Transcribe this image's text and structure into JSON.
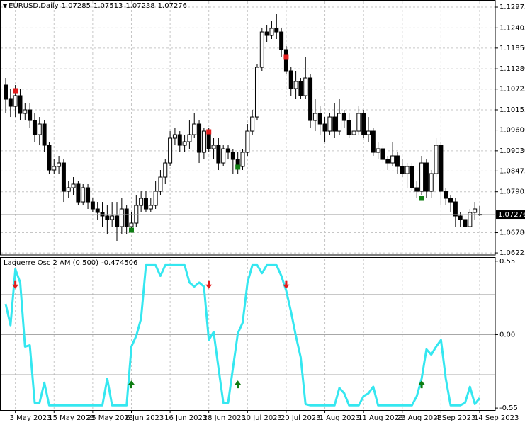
{
  "chart_data": [
    {
      "type": "candlestick",
      "title": "EURUSD,Daily",
      "open": [
        1.10836,
        1.10447,
        1.10252,
        1.10544,
        1.10058,
        1.10155,
        1.09863,
        1.09474,
        1.09766,
        1.09182,
        1.08502,
        1.08599,
        1.08696,
        1.07918,
        1.08015,
        1.08113,
        1.07626,
        1.08015,
        1.07626,
        1.07432,
        1.07335,
        1.07238,
        1.07141,
        1.07238,
        1.06946,
        1.07432,
        1.06946,
        1.07043,
        1.07529,
        1.07724,
        1.07432,
        1.07529,
        1.07918,
        1.08307,
        1.08696,
        1.09377,
        1.09474,
        1.09182,
        1.0928,
        1.09474,
        1.09766,
        1.08988,
        1.09571,
        1.09085,
        1.09182,
        1.08696,
        1.09085,
        1.08988,
        1.08793,
        1.08599,
        1.08988,
        1.09571,
        1.0996,
        1.11322,
        1.12294,
        1.12197,
        1.12392,
        1.12294,
        1.11808,
        1.11225,
        1.10738,
        1.10933,
        1.10544,
        1.1103,
        1.09863,
        1.10058,
        1.09766,
        1.09571,
        1.0996,
        1.09571,
        1.10058,
        1.09863,
        1.09474,
        1.09571,
        1.10058,
        1.09474,
        1.09571,
        1.08988,
        1.09085,
        1.08793,
        1.08696,
        1.08891,
        1.08599,
        1.08404,
        1.08599,
        1.08015,
        1.07918,
        1.08696,
        1.07918,
        1.08404,
        1.09182,
        1.07918,
        1.07724,
        1.07626,
        1.07238,
        1.07141,
        1.06946,
        1.07335,
        1.07285
      ],
      "high": [
        1.1103,
        1.10738,
        1.10836,
        1.10738,
        1.10349,
        1.10349,
        1.10058,
        1.0996,
        1.09863,
        1.0928,
        1.08793,
        1.08891,
        1.08793,
        1.0821,
        1.08307,
        1.0821,
        1.08113,
        1.08113,
        1.07724,
        1.07626,
        1.07626,
        1.07529,
        1.07626,
        1.07626,
        1.07724,
        1.07529,
        1.07335,
        1.07821,
        1.07918,
        1.07918,
        1.07724,
        1.0821,
        1.08502,
        1.08793,
        1.09571,
        1.09669,
        1.09571,
        1.09474,
        1.09863,
        1.10058,
        1.09863,
        1.09669,
        1.09669,
        1.09377,
        1.09377,
        1.09182,
        1.09182,
        1.09085,
        1.08988,
        1.09085,
        1.09766,
        1.10155,
        1.11419,
        1.12392,
        1.12489,
        1.12586,
        1.12781,
        1.12392,
        1.11905,
        1.11322,
        1.11225,
        1.1103,
        1.11614,
        1.11127,
        1.10447,
        1.10252,
        1.0996,
        1.10058,
        1.10349,
        1.10447,
        1.10155,
        1.10058,
        1.09863,
        1.10252,
        1.10155,
        1.0996,
        1.09669,
        1.0928,
        1.09182,
        1.08891,
        1.0928,
        1.08988,
        1.08793,
        1.08696,
        1.08696,
        1.0821,
        1.08891,
        1.08793,
        1.08502,
        1.09377,
        1.0928,
        1.08015,
        1.07821,
        1.07724,
        1.07335,
        1.07238,
        1.07432,
        1.07626,
        1.07513
      ],
      "low": [
        1.10058,
        1.0996,
        1.0996,
        1.09863,
        1.09863,
        1.09669,
        1.0928,
        1.09182,
        1.08988,
        1.08404,
        1.08404,
        1.08404,
        1.07626,
        1.07724,
        1.07821,
        1.07529,
        1.07529,
        1.07432,
        1.07335,
        1.07141,
        1.06946,
        1.06752,
        1.06946,
        1.06557,
        1.06752,
        1.06752,
        1.06849,
        1.06946,
        1.07335,
        1.07335,
        1.07335,
        1.07432,
        1.07821,
        1.08113,
        1.08599,
        1.09182,
        1.08988,
        1.08988,
        1.09085,
        1.09377,
        1.08696,
        1.08793,
        1.08988,
        1.08793,
        1.08502,
        1.08599,
        1.08793,
        1.08404,
        1.08404,
        1.08502,
        1.08891,
        1.09474,
        1.09863,
        1.11225,
        1.12003,
        1.121,
        1.121,
        1.11614,
        1.11127,
        1.10544,
        1.10447,
        1.10447,
        1.10447,
        1.09669,
        1.09571,
        1.09474,
        1.0928,
        1.09474,
        1.09377,
        1.09474,
        1.09669,
        1.09377,
        1.0928,
        1.09474,
        1.09377,
        1.0928,
        1.08891,
        1.08793,
        1.08696,
        1.08502,
        1.08599,
        1.08404,
        1.08307,
        1.08015,
        1.07918,
        1.07724,
        1.07821,
        1.07724,
        1.07724,
        1.08307,
        1.07529,
        1.07529,
        1.07335,
        1.06946,
        1.06946,
        1.06849,
        1.06946,
        1.07141,
        1.07238
      ],
      "close": [
        1.10447,
        1.10252,
        1.10544,
        1.10058,
        1.10155,
        1.09863,
        1.09474,
        1.09766,
        1.09182,
        1.08502,
        1.08599,
        1.08696,
        1.07918,
        1.08015,
        1.08113,
        1.07626,
        1.08015,
        1.07626,
        1.07432,
        1.07335,
        1.07238,
        1.07141,
        1.07238,
        1.06946,
        1.07432,
        1.06946,
        1.07043,
        1.07529,
        1.07724,
        1.07432,
        1.07529,
        1.07918,
        1.08307,
        1.08696,
        1.09377,
        1.09474,
        1.09182,
        1.0928,
        1.09474,
        1.09766,
        1.08988,
        1.09571,
        1.09085,
        1.09182,
        1.08696,
        1.09085,
        1.08988,
        1.08793,
        1.08599,
        1.08988,
        1.09571,
        1.0996,
        1.11322,
        1.12294,
        1.12197,
        1.12392,
        1.12294,
        1.11808,
        1.11225,
        1.10738,
        1.10933,
        1.10544,
        1.1103,
        1.09863,
        1.10058,
        1.09766,
        1.09571,
        1.0996,
        1.09571,
        1.10058,
        1.09863,
        1.09474,
        1.09571,
        1.10058,
        1.09474,
        1.09571,
        1.08988,
        1.09085,
        1.08793,
        1.08696,
        1.08891,
        1.08599,
        1.08404,
        1.08599,
        1.08015,
        1.07918,
        1.08696,
        1.07918,
        1.08404,
        1.09182,
        1.07918,
        1.07724,
        1.07626,
        1.07238,
        1.07141,
        1.06946,
        1.07335,
        1.07432,
        1.07276
      ],
      "sell": [
        null,
        null,
        1.1068,
        null,
        null,
        null,
        null,
        null,
        null,
        null,
        null,
        null,
        null,
        null,
        null,
        null,
        null,
        null,
        null,
        null,
        null,
        null,
        null,
        null,
        null,
        null,
        null,
        null,
        null,
        null,
        null,
        null,
        null,
        null,
        null,
        null,
        null,
        null,
        null,
        null,
        null,
        null,
        1.09552,
        null,
        null,
        null,
        null,
        null,
        null,
        null,
        null,
        null,
        null,
        null,
        null,
        null,
        null,
        null,
        1.11614,
        null,
        null,
        null,
        null,
        null,
        null,
        null,
        null,
        null,
        null,
        null,
        null,
        null,
        null,
        null,
        null,
        null,
        null,
        null,
        null,
        null,
        null,
        null,
        null,
        null,
        null,
        null,
        null,
        null,
        null,
        null,
        null,
        null,
        null,
        null,
        null,
        null,
        null,
        null,
        null
      ],
      "buy": [
        null,
        null,
        null,
        null,
        null,
        null,
        null,
        null,
        null,
        null,
        null,
        null,
        null,
        null,
        null,
        null,
        null,
        null,
        null,
        null,
        null,
        null,
        null,
        null,
        null,
        null,
        1.06849,
        null,
        null,
        null,
        null,
        null,
        null,
        null,
        null,
        null,
        null,
        null,
        null,
        null,
        null,
        null,
        null,
        null,
        null,
        null,
        null,
        null,
        1.0858,
        null,
        null,
        null,
        null,
        null,
        null,
        null,
        null,
        null,
        null,
        null,
        null,
        null,
        null,
        null,
        null,
        null,
        null,
        null,
        null,
        null,
        null,
        null,
        null,
        null,
        null,
        null,
        null,
        null,
        null,
        null,
        null,
        null,
        null,
        null,
        null,
        null,
        1.07724,
        null,
        null,
        null,
        null,
        null,
        null,
        null,
        null,
        null,
        null,
        null,
        null
      ],
      "ylim": [
        1.06168,
        1.13131
      ],
      "yticks": [
        1.12975,
        1.12405,
        {
          "value": 1.1185,
          "label": "1.11850"
        },
        {
          "value": 1.1128,
          "label": "1.11280"
        },
        1.10725,
        1.10155,
        {
          "value": 1.096,
          "label": "1.09600"
        },
        {
          "value": 1.0903,
          "label": "1.09030"
        },
        1.08475,
        1.07905,
        {
          "value": 1.0678,
          "label": "1.06780"
        },
        1.06225
      ],
      "grid": true,
      "bull_color": "#ffffff",
      "bear_color": "#000000",
      "sell_color": "#e31b1b",
      "buy_color": "#0f7d12"
    },
    {
      "type": "line",
      "title": "Laguerre Osc 2 AM (0.500)",
      "categories": [
        null,
        null,
        "3 May 2023",
        null,
        null,
        null,
        null,
        null,
        null,
        null,
        "15 May 2023",
        null,
        null,
        null,
        null,
        null,
        null,
        null,
        "25 May 2023",
        null,
        null,
        null,
        null,
        null,
        null,
        null,
        "6 Jun 2023",
        null,
        null,
        null,
        null,
        null,
        null,
        null,
        "16 Jun 2023",
        null,
        null,
        null,
        null,
        null,
        null,
        null,
        "28 Jun 2023",
        null,
        null,
        null,
        null,
        null,
        null,
        null,
        "10 Jul 2023",
        null,
        null,
        null,
        null,
        null,
        null,
        null,
        "20 Jul 2023",
        null,
        null,
        null,
        null,
        null,
        null,
        null,
        "1 Aug 2023",
        null,
        null,
        null,
        null,
        null,
        null,
        null,
        "11 Aug 2023",
        null,
        null,
        null,
        null,
        null,
        null,
        null,
        "23 Aug 2023",
        null,
        null,
        null,
        null,
        null,
        null,
        null,
        "4 Sep 2023",
        null,
        null,
        null,
        null,
        null,
        null,
        null,
        "14 Sep 2023"
      ],
      "values": [
        0.23,
        0.07,
        0.49,
        0.39,
        -0.09,
        -0.08,
        -0.51,
        -0.51,
        -0.36,
        -0.53,
        -0.53,
        -0.53,
        -0.53,
        -0.53,
        -0.53,
        -0.53,
        -0.53,
        -0.53,
        -0.53,
        -0.53,
        -0.53,
        -0.33,
        -0.53,
        -0.53,
        -0.53,
        -0.53,
        -0.09,
        -0.01,
        0.12,
        0.52,
        0.52,
        0.52,
        0.44,
        0.52,
        0.52,
        0.52,
        0.52,
        0.52,
        0.39,
        0.36,
        0.39,
        0.36,
        -0.04,
        0.02,
        -0.25,
        -0.51,
        -0.51,
        -0.25,
        0.01,
        0.09,
        0.39,
        0.52,
        0.52,
        0.46,
        0.52,
        0.52,
        0.52,
        0.44,
        0.33,
        0.17,
        -0.01,
        -0.17,
        -0.52,
        -0.53,
        -0.53,
        -0.53,
        -0.53,
        -0.53,
        -0.53,
        -0.4,
        -0.44,
        -0.53,
        -0.53,
        -0.53,
        -0.46,
        -0.44,
        -0.39,
        -0.53,
        -0.53,
        -0.53,
        -0.53,
        -0.53,
        -0.53,
        -0.53,
        -0.53,
        -0.46,
        -0.33,
        -0.11,
        -0.15,
        -0.09,
        -0.04,
        -0.33,
        -0.53,
        -0.53,
        -0.53,
        -0.51,
        -0.39,
        -0.52,
        -0.474506
      ],
      "sell": [
        null,
        null,
        0.37,
        null,
        null,
        null,
        null,
        null,
        null,
        null,
        null,
        null,
        null,
        null,
        null,
        null,
        null,
        null,
        null,
        null,
        null,
        null,
        null,
        null,
        null,
        null,
        null,
        null,
        null,
        null,
        null,
        null,
        null,
        null,
        null,
        null,
        null,
        null,
        null,
        null,
        null,
        null,
        0.37,
        null,
        null,
        null,
        null,
        null,
        null,
        null,
        null,
        null,
        null,
        null,
        null,
        null,
        null,
        null,
        0.37,
        null,
        null,
        null,
        null,
        null,
        null,
        null,
        null,
        null,
        null,
        null,
        null,
        null,
        null,
        null,
        null,
        null,
        null,
        null,
        null,
        null,
        null,
        null,
        null,
        null,
        null,
        null,
        null,
        null,
        null,
        null,
        null,
        null,
        null,
        null,
        null,
        null,
        null,
        null,
        null
      ],
      "buy": [
        null,
        null,
        null,
        null,
        null,
        null,
        null,
        null,
        null,
        null,
        null,
        null,
        null,
        null,
        null,
        null,
        null,
        null,
        null,
        null,
        null,
        null,
        null,
        null,
        null,
        null,
        -0.37,
        null,
        null,
        null,
        null,
        null,
        null,
        null,
        null,
        null,
        null,
        null,
        null,
        null,
        null,
        null,
        null,
        null,
        null,
        null,
        null,
        null,
        -0.37,
        null,
        null,
        null,
        null,
        null,
        null,
        null,
        null,
        null,
        null,
        null,
        null,
        null,
        null,
        null,
        null,
        null,
        null,
        null,
        null,
        null,
        null,
        null,
        null,
        null,
        null,
        null,
        null,
        null,
        null,
        null,
        null,
        null,
        null,
        null,
        null,
        null,
        -0.37,
        null,
        null,
        null,
        null,
        null,
        null,
        null,
        null,
        null,
        null,
        null,
        null
      ],
      "ylim": [
        -0.56,
        0.57
      ],
      "yticks": [
        0.55,
        {
          "value": 0,
          "label": "0.00"
        },
        -0.55
      ],
      "levels": [
        0.3,
        0,
        -0.3
      ],
      "grid": true,
      "color": "#35e7f0",
      "level_color": "#a8a8a8",
      "sell_color": "#e31b1b",
      "buy_color": "#0f7d12"
    }
  ]
}
